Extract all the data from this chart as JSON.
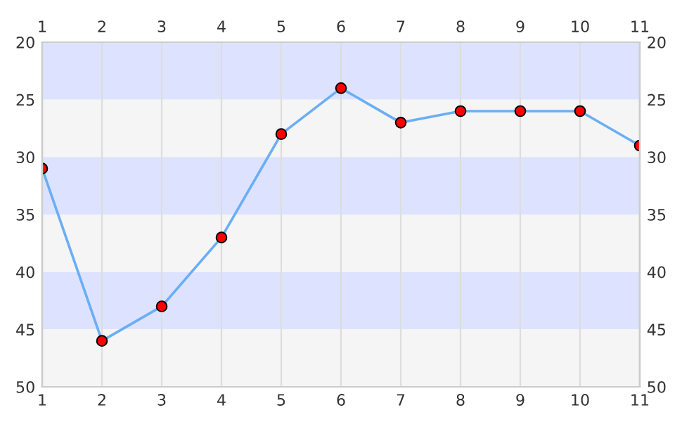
{
  "chart_data": {
    "type": "line",
    "x": [
      1,
      2,
      3,
      4,
      5,
      6,
      7,
      8,
      9,
      10,
      11
    ],
    "series": [
      {
        "color": "#6aaef5",
        "values": [
          31,
          46,
          43,
          37,
          28,
          24,
          27,
          26,
          26,
          26,
          29
        ],
        "colors": [
          "#ff0000",
          "#ff0000",
          "#ff0000",
          "#ff0000",
          "#ff0000",
          "#ff0000",
          "#ff0000",
          "#ff0000",
          "#ff0000",
          "#ff0000",
          "#ff0000"
        ]
      }
    ],
    "marker": "circle",
    "line_style": "solid",
    "xlim": [
      1,
      11
    ],
    "xticks": [
      1,
      2,
      3,
      4,
      5,
      6,
      7,
      8,
      9,
      10,
      11
    ],
    "x2lim": [
      1,
      11
    ],
    "x2ticks": [
      1,
      2,
      3,
      4,
      5,
      6,
      7,
      8,
      9,
      10,
      11
    ],
    "ylim": [
      50,
      20
    ],
    "yticks": [
      20,
      25,
      30,
      35,
      40,
      45,
      50
    ],
    "y2lim": [
      50,
      20
    ],
    "y2ticks": [
      20,
      25,
      30,
      35,
      40,
      45,
      50
    ],
    "grid": "x",
    "bands": [
      {
        "axis": "y",
        "from": 20,
        "to": 25,
        "color": "#dde3ff"
      },
      {
        "axis": "y",
        "from": 25,
        "to": 30,
        "color": "#f5f5f5"
      },
      {
        "axis": "y",
        "from": 30,
        "to": 35,
        "color": "#dde3ff"
      },
      {
        "axis": "y",
        "from": 35,
        "to": 40,
        "color": "#f5f5f5"
      },
      {
        "axis": "y",
        "from": 40,
        "to": 45,
        "color": "#dde3ff"
      },
      {
        "axis": "y",
        "from": 45,
        "to": 50,
        "color": "#f5f5f5"
      }
    ]
  }
}
